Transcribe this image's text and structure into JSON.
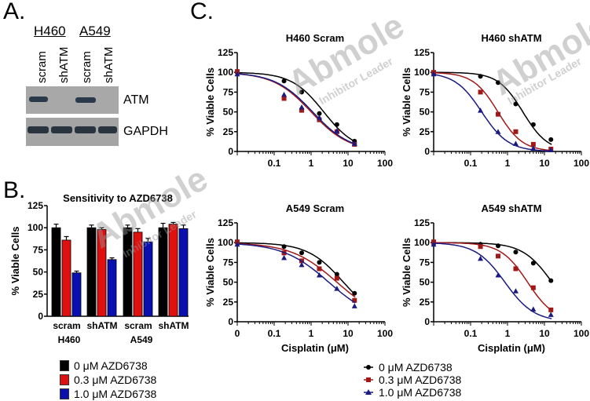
{
  "panels": {
    "A": {
      "letter": "A.",
      "cell_lines": [
        "H460",
        "A549"
      ],
      "lanes": [
        "scram",
        "shATM",
        "scram",
        "shATM"
      ],
      "blots": [
        {
          "label": "ATM",
          "band_intensity": [
            1,
            0,
            1,
            0
          ]
        },
        {
          "label": "GAPDH",
          "band_intensity": [
            1,
            1,
            1,
            1
          ]
        }
      ]
    },
    "B": {
      "letter": "B."
    },
    "C": {
      "letter": "C."
    }
  },
  "colors": {
    "black": "#000000",
    "red": "#e01010",
    "blue": "#0a10b0",
    "dark_red": "#a01818",
    "dark_blue": "#1a1a80"
  },
  "legend_B": [
    {
      "label": "0 μM AZD6738",
      "color": "#000000"
    },
    {
      "label": "0.3 μM AZD6738",
      "color": "#e01010"
    },
    {
      "label": "1.0 μM AZD6738",
      "color": "#0a10b0"
    }
  ],
  "legend_C": [
    {
      "label": "0 μM AZD6738",
      "color": "#000000",
      "marker": "circle"
    },
    {
      "label": "0.3 μM AZD6738",
      "color": "#a01818",
      "marker": "square"
    },
    {
      "label": "1.0 μM AZD6738",
      "color": "#1a1a80",
      "marker": "triangle"
    }
  ],
  "watermark": {
    "brand": "Abmole",
    "tagline": "Inhibitor Leader"
  },
  "chart_data": [
    {
      "type": "bar",
      "title": "Sensitivity to AZD6738",
      "ylabel": "% Viable Cells",
      "xlabel": "",
      "ylim": [
        0,
        125
      ],
      "yticks": [
        0,
        25,
        50,
        75,
        100,
        125
      ],
      "categories": [
        "scram",
        "shATM",
        "scram",
        "shATM"
      ],
      "groups": [
        "H460",
        "A549"
      ],
      "series": [
        {
          "name": "0 μM AZD6738",
          "values": [
            100,
            100,
            100,
            100
          ],
          "errors": [
            4,
            3,
            3,
            5
          ]
        },
        {
          "name": "0.3 μM AZD6738",
          "values": [
            86,
            98,
            95,
            104
          ],
          "errors": [
            4,
            2,
            4,
            2
          ]
        },
        {
          "name": "1.0 μM AZD6738",
          "values": [
            49,
            64,
            84,
            99
          ],
          "errors": [
            2,
            2,
            4,
            4
          ]
        }
      ],
      "legend": "bottom-left"
    },
    {
      "type": "line",
      "title": "H460 Scram",
      "xlabel": "Cisplatin (μM)",
      "ylabel": "% Viable Cells",
      "xscale": "log",
      "xticks": [
        "0.1",
        "1",
        "10",
        "100"
      ],
      "ylim": [
        0,
        125
      ],
      "yticks": [
        0,
        25,
        50,
        75,
        100,
        125
      ],
      "x": [
        0.01,
        0.185,
        0.556,
        1.67,
        5,
        15
      ],
      "series": [
        {
          "name": "0 μM AZD6738",
          "values": [
            100,
            89,
            75,
            48,
            34,
            13
          ],
          "ic50": 2.2,
          "hill": 1.0
        },
        {
          "name": "0.3 μM AZD6738",
          "values": [
            101,
            67,
            52,
            40,
            25,
            9
          ],
          "ic50": 1.0,
          "hill": 0.85
        },
        {
          "name": "1.0 μM AZD6738",
          "values": [
            98,
            72,
            56,
            43,
            26,
            10
          ],
          "ic50": 1.1,
          "hill": 0.85
        }
      ]
    },
    {
      "type": "line",
      "title": "H460 shATM",
      "xlabel": "Cisplatin (μM)",
      "ylabel": "% Viable Cells",
      "xscale": "log",
      "xticks": [
        "0.1",
        "1",
        "10",
        "100"
      ],
      "ylim": [
        0,
        125
      ],
      "yticks": [
        0,
        25,
        50,
        75,
        100,
        125
      ],
      "x": [
        0.01,
        0.185,
        0.556,
        1.67,
        5,
        15
      ],
      "series": [
        {
          "name": "0 μM AZD6738",
          "values": [
            99,
            95,
            87,
            60,
            34,
            15
          ],
          "ic50": 2.6,
          "hill": 1.3
        },
        {
          "name": "0.3 μM AZD6738",
          "values": [
            100,
            75,
            47,
            25,
            9,
            3
          ],
          "ic50": 0.55,
          "hill": 1.3
        },
        {
          "name": "1.0 μM AZD6738",
          "values": [
            98,
            52,
            25,
            10,
            4,
            2
          ],
          "ic50": 0.2,
          "hill": 1.2
        }
      ]
    },
    {
      "type": "line",
      "title": "A549 Scram",
      "xlabel": "Cisplatin (μM)",
      "ylabel": "% Viable Cells",
      "xscale": "log",
      "xticks": [
        "0",
        "0.1",
        "1",
        "10",
        "100"
      ],
      "ylim": [
        0,
        125
      ],
      "yticks": [
        0,
        25,
        50,
        75,
        100,
        125
      ],
      "x": [
        0.01,
        0.185,
        0.556,
        1.67,
        5,
        15
      ],
      "series": [
        {
          "name": "0 μM AZD6738",
          "values": [
            100,
            95,
            87,
            75,
            60,
            36
          ],
          "ic50": 7.5,
          "hill": 0.9
        },
        {
          "name": "0.3 μM AZD6738",
          "values": [
            101,
            87,
            77,
            67,
            55,
            27
          ],
          "ic50": 5.0,
          "hill": 0.7
        },
        {
          "name": "1.0 μM AZD6738",
          "values": [
            98,
            81,
            72,
            59,
            42,
            20
          ],
          "ic50": 3.0,
          "hill": 0.7
        }
      ]
    },
    {
      "type": "line",
      "title": "A549 shATM",
      "xlabel": "Cisplatin (μM)",
      "ylabel": "% Viable Cells",
      "xscale": "log",
      "xticks": [
        "0.1",
        "1",
        "10",
        "100"
      ],
      "ylim": [
        0,
        125
      ],
      "yticks": [
        0,
        25,
        50,
        75,
        100,
        125
      ],
      "x": [
        0.01,
        0.185,
        0.556,
        1.67,
        5,
        15
      ],
      "series": [
        {
          "name": "0 μM AZD6738",
          "values": [
            99,
            98,
            96,
            88,
            74,
            52
          ],
          "ic50": 16,
          "hill": 1.1
        },
        {
          "name": "0.3 μM AZD6738",
          "values": [
            101,
            95,
            83,
            67,
            43,
            15
          ],
          "ic50": 3.5,
          "hill": 1.2
        },
        {
          "name": "1.0 μM AZD6738",
          "values": [
            98,
            80,
            59,
            39,
            16,
            9
          ],
          "ic50": 0.85,
          "hill": 1.1
        }
      ]
    }
  ]
}
